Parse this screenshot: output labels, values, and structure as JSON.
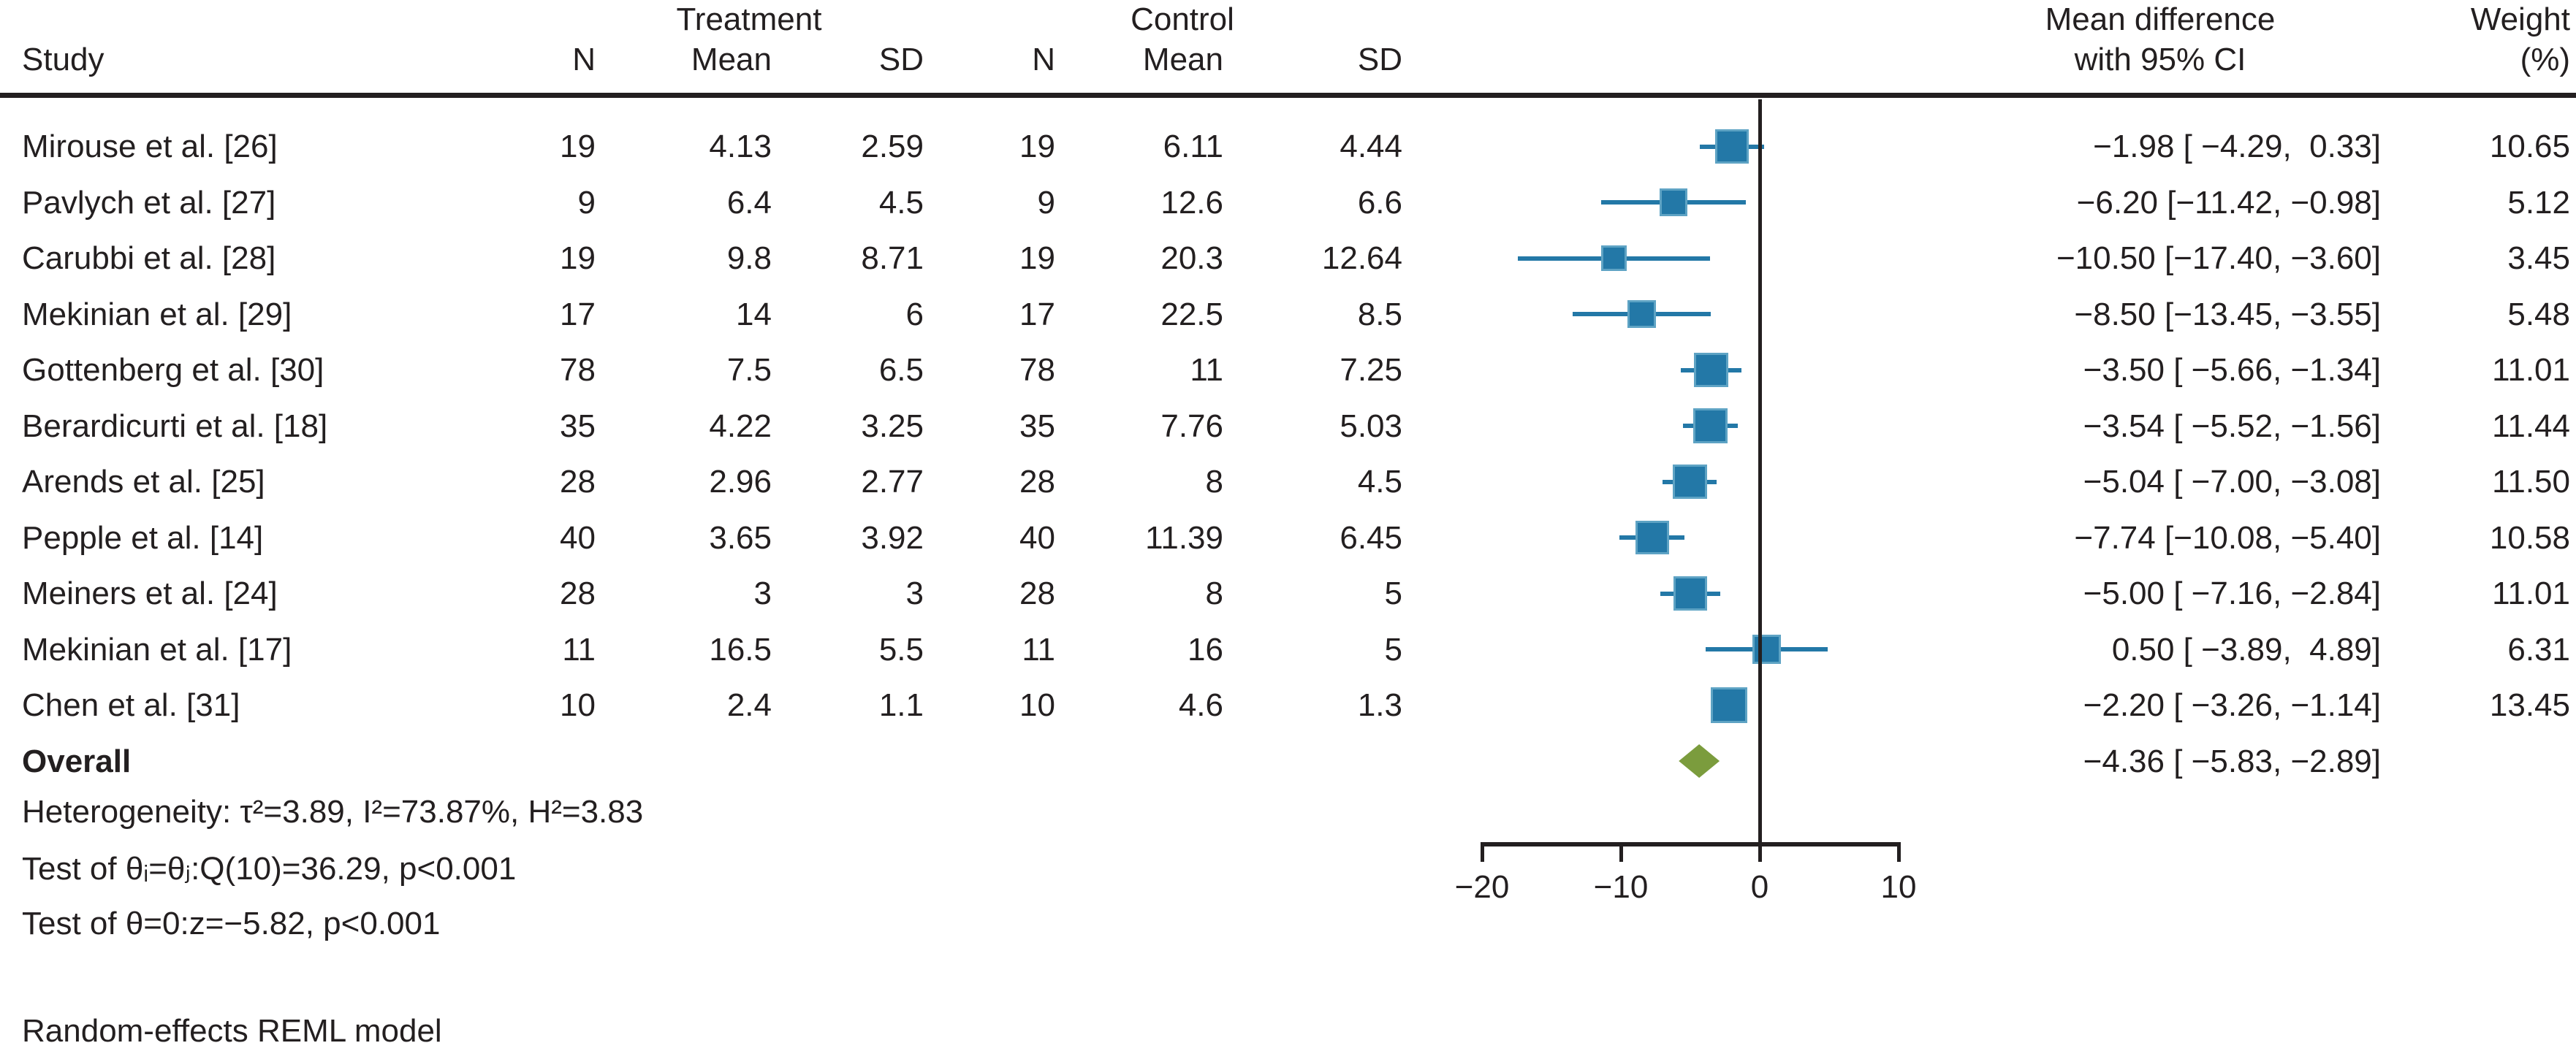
{
  "colors": {
    "ink": "#231f20",
    "blue": "#2378a7",
    "blue-edge": "#5ea3c4",
    "olive": "#7b9c3d"
  },
  "header": {
    "study": "Study",
    "treatment": "Treatment",
    "control": "Control",
    "t_n": "N",
    "t_mean": "Mean",
    "t_sd": "SD",
    "c_n": "N",
    "c_mean": "Mean",
    "c_sd": "SD",
    "md_line1": "Mean difference",
    "md_line2": "with 95% CI",
    "weight_line1": "Weight",
    "weight_line2": "(%)"
  },
  "rows": [
    {
      "study": "Mirouse et al. [26]",
      "tn": "19",
      "tmean": "4.13",
      "tsd": "2.59",
      "cn": "19",
      "cmean": "6.11",
      "csd": "4.44",
      "ci": "−1.98 [ −4.29,  0.33]",
      "weight": "10.65"
    },
    {
      "study": "Pavlych et al. [27]",
      "tn": "9",
      "tmean": "6.4",
      "tsd": "4.5",
      "cn": "9",
      "cmean": "12.6",
      "csd": "6.6",
      "ci": "−6.20 [−11.42, −0.98]",
      "weight": "5.12"
    },
    {
      "study": "Carubbi et al. [28]",
      "tn": "19",
      "tmean": "9.8",
      "tsd": "8.71",
      "cn": "19",
      "cmean": "20.3",
      "csd": "12.64",
      "ci": "−10.50 [−17.40, −3.60]",
      "weight": "3.45"
    },
    {
      "study": "Mekinian et al. [29]",
      "tn": "17",
      "tmean": "14",
      "tsd": "6",
      "cn": "17",
      "cmean": "22.5",
      "csd": "8.5",
      "ci": "−8.50 [−13.45, −3.55]",
      "weight": "5.48"
    },
    {
      "study": "Gottenberg et al. [30]",
      "tn": "78",
      "tmean": "7.5",
      "tsd": "6.5",
      "cn": "78",
      "cmean": "11",
      "csd": "7.25",
      "ci": "−3.50 [ −5.66, −1.34]",
      "weight": "11.01"
    },
    {
      "study": "Berardicurti et al. [18]",
      "tn": "35",
      "tmean": "4.22",
      "tsd": "3.25",
      "cn": "35",
      "cmean": "7.76",
      "csd": "5.03",
      "ci": "−3.54 [ −5.52, −1.56]",
      "weight": "11.44"
    },
    {
      "study": "Arends et al. [25]",
      "tn": "28",
      "tmean": "2.96",
      "tsd": "2.77",
      "cn": "28",
      "cmean": "8",
      "csd": "4.5",
      "ci": "−5.04 [ −7.00, −3.08]",
      "weight": "11.50"
    },
    {
      "study": "Pepple et al. [14]",
      "tn": "40",
      "tmean": "3.65",
      "tsd": "3.92",
      "cn": "40",
      "cmean": "11.39",
      "csd": "6.45",
      "ci": "−7.74 [−10.08, −5.40]",
      "weight": "10.58"
    },
    {
      "study": "Meiners et al. [24]",
      "tn": "28",
      "tmean": "3",
      "tsd": "3",
      "cn": "28",
      "cmean": "8",
      "csd": "5",
      "ci": "−5.00 [ −7.16, −2.84]",
      "weight": "11.01"
    },
    {
      "study": "Mekinian et al. [17]",
      "tn": "11",
      "tmean": "16.5",
      "tsd": "5.5",
      "cn": "11",
      "cmean": "16",
      "csd": "5",
      "ci": "0.50 [ −3.89,  4.89]",
      "weight": "6.31"
    },
    {
      "study": "Chen et al. [31]",
      "tn": "10",
      "tmean": "2.4",
      "tsd": "1.1",
      "cn": "10",
      "cmean": "4.6",
      "csd": "1.3",
      "ci": "−2.20 [ −3.26, −1.14]",
      "weight": "13.45"
    }
  ],
  "overall": {
    "label": "Overall",
    "ci": "−4.36 [ −5.83, −2.89]"
  },
  "stats": {
    "heterogeneity": "Heterogeneity: τ²=3.89, I²=73.87%, H²=3.83",
    "test_q": "Test of θᵢ=θⱼ:Q(10)=36.29, p<0.001",
    "test_z": "Test of θ=0:z=−5.82, p<0.001"
  },
  "footnote": "Random-effects REML model",
  "chart_data": {
    "type": "forest",
    "title": "Meta-analysis of mean difference, treatment vs control",
    "xlabel": "Mean difference with 95% CI",
    "xlim": [
      -20,
      10
    ],
    "x_ticks": [
      -20,
      -10,
      0,
      10
    ],
    "x_tick_labels": [
      "−20",
      "−10",
      "0",
      "10"
    ],
    "zero_line": 0,
    "legend_position": "none",
    "grid": false,
    "studies": [
      {
        "name": "Mirouse et al. [26]",
        "md": -1.98,
        "lo": -4.29,
        "hi": 0.33,
        "weight": 10.65
      },
      {
        "name": "Pavlych et al. [27]",
        "md": -6.2,
        "lo": -11.42,
        "hi": -0.98,
        "weight": 5.12
      },
      {
        "name": "Carubbi et al. [28]",
        "md": -10.5,
        "lo": -17.4,
        "hi": -3.6,
        "weight": 3.45
      },
      {
        "name": "Mekinian et al. [29]",
        "md": -8.5,
        "lo": -13.45,
        "hi": -3.55,
        "weight": 5.48
      },
      {
        "name": "Gottenberg et al. [30]",
        "md": -3.5,
        "lo": -5.66,
        "hi": -1.34,
        "weight": 11.01
      },
      {
        "name": "Berardicurti et al. [18]",
        "md": -3.54,
        "lo": -5.52,
        "hi": -1.56,
        "weight": 11.44
      },
      {
        "name": "Arends et al. [25]",
        "md": -5.04,
        "lo": -7.0,
        "hi": -3.08,
        "weight": 11.5
      },
      {
        "name": "Pepple et al. [14]",
        "md": -7.74,
        "lo": -10.08,
        "hi": -5.4,
        "weight": 10.58
      },
      {
        "name": "Meiners et al. [24]",
        "md": -5.0,
        "lo": -7.16,
        "hi": -2.84,
        "weight": 11.01
      },
      {
        "name": "Mekinian et al. [17]",
        "md": 0.5,
        "lo": -3.89,
        "hi": 4.89,
        "weight": 6.31
      },
      {
        "name": "Chen et al. [31]",
        "md": -2.2,
        "lo": -3.26,
        "hi": -1.14,
        "weight": 13.45
      }
    ],
    "overall": {
      "md": -4.36,
      "lo": -5.83,
      "hi": -2.89
    },
    "heterogeneity": {
      "tau2": 3.89,
      "I2_pct": 73.87,
      "H2": 3.83,
      "Q_df": 10,
      "Q": 36.29,
      "Q_p": "<0.001",
      "z": -5.82,
      "z_p": "<0.001"
    },
    "model": "Random-effects REML"
  }
}
